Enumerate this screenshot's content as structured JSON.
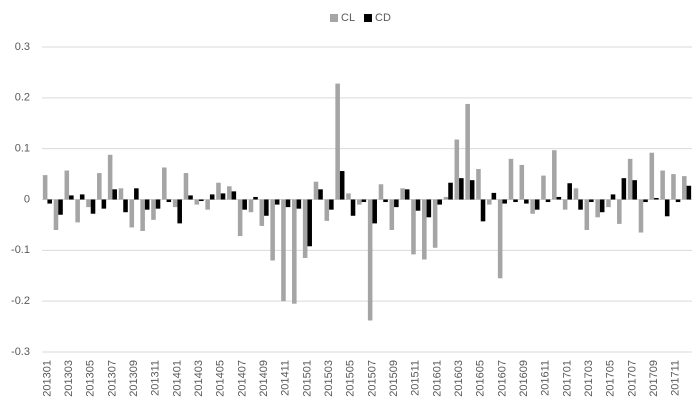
{
  "chart_data": {
    "type": "bar",
    "categories": [
      "201301",
      null,
      "201303",
      null,
      "201305",
      null,
      "201307",
      null,
      "201309",
      null,
      "201311",
      null,
      "201401",
      null,
      "201403",
      null,
      "201405",
      null,
      "201407",
      null,
      "201409",
      null,
      "201411",
      null,
      "201501",
      null,
      "201503",
      null,
      "201505",
      null,
      "201507",
      null,
      "201509",
      null,
      "201511",
      null,
      "201601",
      null,
      "201603",
      null,
      "201605",
      null,
      "201607",
      null,
      "201609",
      null,
      "201611",
      null,
      "201701",
      null,
      "201703",
      null,
      "201705",
      null,
      "201707",
      null,
      "201709",
      null,
      "201711",
      null
    ],
    "series": [
      {
        "name": "CL",
        "color": "#a5a5a5",
        "values": [
          0.048,
          -0.06,
          0.057,
          -0.045,
          -0.015,
          0.052,
          0.088,
          0.022,
          -0.055,
          -0.062,
          -0.04,
          0.063,
          -0.015,
          0.052,
          -0.01,
          -0.02,
          0.033,
          0.026,
          -0.072,
          -0.025,
          -0.052,
          -0.12,
          -0.2,
          -0.205,
          -0.115,
          0.035,
          -0.042,
          0.228,
          0.012,
          -0.01,
          -0.238,
          0.03,
          -0.06,
          0.022,
          -0.108,
          -0.118,
          -0.095,
          0.005,
          0.118,
          0.188,
          0.06,
          -0.01,
          -0.155,
          0.08,
          0.068,
          -0.028,
          0.047,
          0.097,
          -0.02,
          0.022,
          -0.06,
          -0.035,
          -0.015,
          -0.048,
          0.08,
          -0.065,
          0.092,
          0.057,
          0.05,
          0.046
        ]
      },
      {
        "name": "CD",
        "color": "#000000",
        "values": [
          -0.008,
          -0.03,
          0.008,
          0.01,
          -0.028,
          -0.018,
          0.02,
          -0.025,
          0.022,
          -0.02,
          -0.018,
          -0.005,
          -0.047,
          0.008,
          -0.003,
          0.01,
          0.012,
          0.016,
          -0.02,
          0.005,
          -0.032,
          -0.01,
          -0.015,
          -0.018,
          -0.092,
          0.02,
          -0.02,
          0.056,
          -0.032,
          -0.005,
          -0.047,
          -0.005,
          -0.015,
          0.02,
          -0.022,
          -0.035,
          -0.01,
          0.033,
          0.042,
          0.038,
          -0.043,
          0.013,
          -0.008,
          -0.005,
          -0.008,
          -0.02,
          -0.005,
          0.005,
          0.032,
          -0.02,
          -0.005,
          -0.025,
          0.01,
          0.042,
          0.038,
          -0.005,
          0.003,
          -0.033,
          -0.005,
          0.027
        ]
      }
    ],
    "ylim": [
      -0.3,
      0.3
    ],
    "yticks": [
      -0.3,
      -0.2,
      -0.1,
      0,
      0.1,
      0.2,
      0.3
    ],
    "grid": true,
    "legend": "top"
  }
}
